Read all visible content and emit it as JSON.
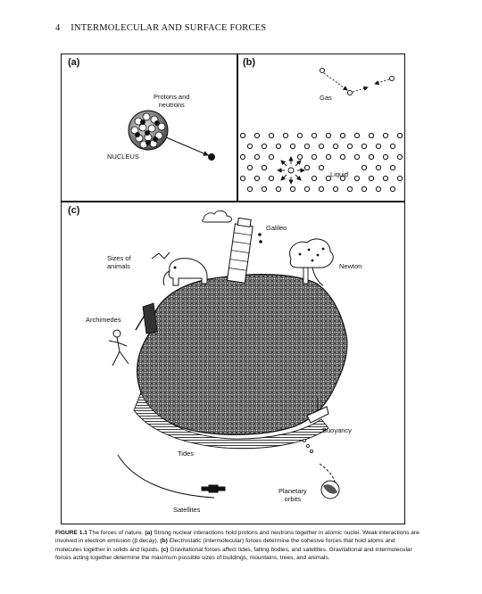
{
  "header": {
    "page_number": "4",
    "running_title": "INTERMOLECULAR AND SURFACE FORCES"
  },
  "panels": {
    "a": {
      "label": "(a)",
      "protons_label_line1": "Protons and",
      "protons_label_line2": "neutrons",
      "nucleus_label": "NUCLEUS"
    },
    "b": {
      "label": "(b)",
      "gas_label": "Gas",
      "liquid_label": "Liquid"
    },
    "c": {
      "label": "(c)",
      "galileo": "Galileo",
      "sizes_line1": "Sizes of",
      "sizes_line2": "animals",
      "newton": "Newton",
      "archimedes": "Archimedes",
      "buoyancy": "Buoyancy",
      "tides": "Tides",
      "planetary_line1": "Planetary",
      "planetary_line2": "orbits",
      "satellites": "Satellites"
    }
  },
  "caption": {
    "figure_label": "FIGURE 1.1",
    "intro": "The forces of nature.",
    "a_label": "(a)",
    "a_text": "Strong nuclear interactions hold protons and neutrons together in atomic nuclei. Weak interactions are involved in electron emission (β decay).",
    "b_label": "(b)",
    "b_text": "Electrostatic (intermolecular) forces determine the cohesive forces that hold atoms and molecules together in solids and liquids.",
    "c_label": "(c)",
    "c_text": "Gravitational forces affect tides, falling bodies, and satellites. Gravitational and intermolecular forces acting together determine the maximum possible sizes of buildings, mountains, trees, and animals."
  }
}
